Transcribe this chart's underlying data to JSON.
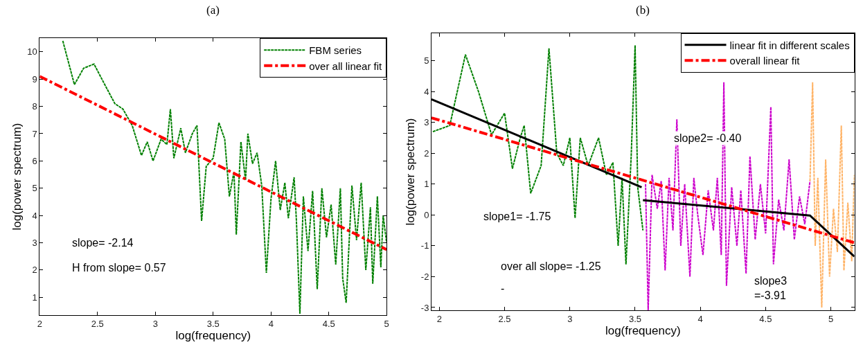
{
  "chart_data": [
    {
      "type": "line",
      "title": "(a)",
      "xlabel": "log(frequency)",
      "ylabel": "log(power spectrum)",
      "xlim": [
        2,
        5
      ],
      "ylim": [
        0.35,
        10.5
      ],
      "xticks": [
        2,
        2.5,
        3,
        3.5,
        4,
        4.5,
        5
      ],
      "yticks": [
        1,
        2,
        3,
        4,
        5,
        6,
        7,
        8,
        9,
        10
      ],
      "legend": "top right",
      "series": [
        {
          "name": "FBM series",
          "color": "#008000",
          "line_style": "dashed",
          "x": [
            2.2,
            2.3,
            2.38,
            2.47,
            2.55,
            2.65,
            2.72,
            2.8,
            2.88,
            2.93,
            2.98,
            3.05,
            3.1,
            3.13,
            3.16,
            3.22,
            3.26,
            3.32,
            3.36,
            3.4,
            3.44,
            3.5,
            3.55,
            3.6,
            3.64,
            3.68,
            3.7,
            3.74,
            3.78,
            3.8,
            3.84,
            3.88,
            3.92,
            3.96,
            4.0,
            4.04,
            4.08,
            4.12,
            4.15,
            4.2,
            4.22,
            4.25,
            4.28,
            4.32,
            4.36,
            4.4,
            4.44,
            4.48,
            4.52,
            4.56,
            4.6,
            4.62,
            4.65,
            4.7,
            4.74,
            4.78,
            4.82,
            4.86,
            4.88,
            4.92,
            4.95,
            4.97,
            5.0
          ],
          "values": [
            10.4,
            8.8,
            9.4,
            9.55,
            8.9,
            8.1,
            7.9,
            7.3,
            6.2,
            6.7,
            6.0,
            6.8,
            6.6,
            7.9,
            6.1,
            7.2,
            6.3,
            7.0,
            7.3,
            3.8,
            5.8,
            6.1,
            7.4,
            6.8,
            4.7,
            5.6,
            3.3,
            6.7,
            5.3,
            7.0,
            5.9,
            6.3,
            5.1,
            1.9,
            4.6,
            6.0,
            4.2,
            5.2,
            3.9,
            5.4,
            3.8,
            0.4,
            4.7,
            2.7,
            4.9,
            1.3,
            5.0,
            3.2,
            4.4,
            2.2,
            5.0,
            1.7,
            0.8,
            5.1,
            3.1,
            5.2,
            2.0,
            4.3,
            1.5,
            4.7,
            2.1,
            4.0,
            3.0
          ]
        },
        {
          "name": "over all linear fit",
          "color": "#ff0000",
          "line_style": "dashdot",
          "x": [
            2,
            5
          ],
          "values": [
            9.1,
            2.75
          ]
        }
      ],
      "annotations": [
        "slope= -2.14",
        "H from slope= 0.57"
      ]
    },
    {
      "type": "line",
      "title": "(b)",
      "xlabel": "log(frequency)",
      "ylabel": "log(power spectrum)",
      "xlim": [
        1.94,
        5.18
      ],
      "ylim": [
        -3.1,
        5.9
      ],
      "xticks": [
        2,
        2.5,
        3,
        3.5,
        4,
        4.5,
        5
      ],
      "yticks": [
        -3,
        -2,
        -1,
        0,
        1,
        2,
        3,
        4,
        5
      ],
      "legend": "top right",
      "series": [
        {
          "color": "#008000",
          "line_style": "dashed",
          "x": [
            1.95,
            2.08,
            2.2,
            2.3,
            2.4,
            2.5,
            2.56,
            2.62,
            2.65,
            2.7,
            2.78,
            2.84,
            2.9,
            2.95,
            3.0,
            3.04,
            3.08,
            3.14,
            3.22,
            3.28,
            3.33,
            3.37,
            3.4,
            3.43,
            3.47,
            3.5,
            3.52,
            3.56
          ],
          "values": [
            2.7,
            2.9,
            5.2,
            4.0,
            2.6,
            3.3,
            1.5,
            2.5,
            2.9,
            0.7,
            1.6,
            5.4,
            2.0,
            1.6,
            2.5,
            -0.1,
            2.5,
            1.6,
            2.5,
            1.3,
            1.7,
            -1.0,
            1.2,
            -1.6,
            1.9,
            5.5,
            0.9,
            -0.5
          ]
        },
        {
          "color": "#cc00cc",
          "line_style": "dashed",
          "x": [
            3.58,
            3.6,
            3.63,
            3.67,
            3.7,
            3.73,
            3.76,
            3.79,
            3.82,
            3.85,
            3.88,
            3.92,
            3.95,
            3.98,
            4.02,
            4.06,
            4.1,
            4.13,
            4.16,
            4.18,
            4.2,
            4.24,
            4.28,
            4.31,
            4.35,
            4.38,
            4.42,
            4.46,
            4.5,
            4.54,
            4.56,
            4.6,
            4.64,
            4.68,
            4.72,
            4.76,
            4.8,
            4.84
          ],
          "values": [
            1.0,
            -3.1,
            1.3,
            0.2,
            1.1,
            -1.8,
            1.2,
            -0.5,
            3.1,
            -1.0,
            1.0,
            -2.0,
            1.2,
            0.0,
            -1.3,
            0.8,
            -0.5,
            1.2,
            -1.3,
            4.3,
            -2.3,
            0.9,
            -1.0,
            0.8,
            -1.9,
            1.9,
            -0.8,
            1.0,
            -0.6,
            3.5,
            -1.6,
            0.5,
            -0.5,
            1.8,
            -0.8,
            0.6,
            -0.3,
            1.1
          ]
        },
        {
          "color": "#ffb366",
          "line_style": "dashed",
          "x": [
            4.84,
            4.86,
            4.88,
            4.9,
            4.93,
            4.96,
            4.99,
            5.02,
            5.05,
            5.08,
            5.1,
            5.13,
            5.16,
            5.18
          ],
          "values": [
            1.1,
            4.3,
            -1.0,
            1.2,
            -3.0,
            1.8,
            -2.0,
            0.2,
            -1.2,
            2.9,
            -1.8,
            0.4,
            -1.5,
            1.3
          ]
        },
        {
          "name": "linear fit in different scales",
          "color": "#000000",
          "line_style": "solid",
          "x": [
            1.94,
            3.55,
            3.555,
            3.56,
            4.84,
            5.18
          ],
          "values": [
            3.75,
            0.9,
            null,
            0.48,
            -0.02,
            -1.35
          ]
        },
        {
          "name": "overall linear fit",
          "color": "#ff0000",
          "line_style": "dashdot",
          "x": [
            1.94,
            5.18
          ],
          "values": [
            3.15,
            -0.9
          ]
        }
      ],
      "annotations": [
        "slope1= -1.75",
        "slope2= -0.40",
        "over all slope= -1.25",
        "-",
        "slope3\n=-3.91"
      ]
    }
  ]
}
